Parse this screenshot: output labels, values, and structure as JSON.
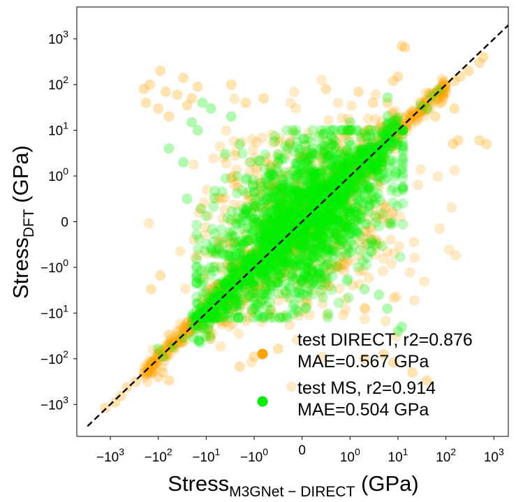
{
  "chart_data": {
    "type": "scatter",
    "title": "",
    "xlabel": {
      "main": "Stress",
      "sub": "M3GNet − DIRECT",
      "unit": "(GPa)"
    },
    "ylabel": {
      "main": "Stress",
      "sub": "DFT",
      "unit": "(GPa)"
    },
    "xscale": "symlog",
    "yscale": "symlog",
    "linthresh": 1,
    "xlim": [
      -5000,
      2000
    ],
    "ylim": [
      -5000,
      5000
    ],
    "x_ticks": [
      {
        "value": -1000,
        "base": "−10",
        "exp": "3"
      },
      {
        "value": -100,
        "base": "−10",
        "exp": "2"
      },
      {
        "value": -10,
        "base": "−10",
        "exp": "1"
      },
      {
        "value": -1,
        "base": "−10",
        "exp": "0"
      },
      {
        "value": 0,
        "base": "0",
        "exp": ""
      },
      {
        "value": 1,
        "base": "10",
        "exp": "0"
      },
      {
        "value": 10,
        "base": "10",
        "exp": "1"
      },
      {
        "value": 100,
        "base": "10",
        "exp": "2"
      },
      {
        "value": 1000,
        "base": "10",
        "exp": "3"
      }
    ],
    "y_ticks": [
      {
        "value": -1000,
        "base": "−10",
        "exp": "3"
      },
      {
        "value": -100,
        "base": "−10",
        "exp": "2"
      },
      {
        "value": -10,
        "base": "−10",
        "exp": "1"
      },
      {
        "value": -1,
        "base": "−10",
        "exp": "0"
      },
      {
        "value": 0,
        "base": "0",
        "exp": ""
      },
      {
        "value": 1,
        "base": "10",
        "exp": "0"
      },
      {
        "value": 10,
        "base": "10",
        "exp": "1"
      },
      {
        "value": 100,
        "base": "10",
        "exp": "2"
      },
      {
        "value": 1000,
        "base": "10",
        "exp": "3"
      }
    ],
    "reference_line": {
      "type": "y=x",
      "style": "dashed",
      "color": "#000000"
    },
    "series": [
      {
        "name": "test DIRECT",
        "legend_line1": "test DIRECT, r2=0.876",
        "legend_line2": "MAE=0.567 GPa",
        "r2": 0.876,
        "mae_gpa": 0.567,
        "color": "#FFA500",
        "alpha": 0.25,
        "note": "dense cloud concentrated along y=x; representative outliers listed",
        "points": [
          [
            -1300,
            -1200
          ],
          [
            -800,
            -900
          ],
          [
            -600,
            -650
          ],
          [
            -450,
            -420
          ],
          [
            -300,
            -320
          ],
          [
            -200,
            -210
          ],
          [
            -150,
            -140
          ],
          [
            -120,
            -110
          ],
          [
            -80,
            -90
          ],
          [
            -60,
            -55
          ],
          [
            -40,
            -45
          ],
          [
            -150,
            100
          ],
          [
            -180,
            40
          ],
          [
            -100,
            30
          ],
          [
            -90,
            200
          ],
          [
            -60,
            20
          ],
          [
            -70,
            70
          ],
          [
            -200,
            80
          ],
          [
            -140,
            -3
          ],
          [
            -90,
            -1.5
          ],
          [
            -60,
            -30
          ],
          [
            -40,
            -25
          ],
          [
            -80,
            -200
          ],
          [
            -60,
            -300
          ],
          [
            -100,
            -250
          ],
          [
            -30,
            140
          ],
          [
            -20,
            50
          ],
          [
            -15,
            90
          ],
          [
            -25,
            35
          ],
          [
            -40,
            60
          ],
          [
            -3,
            100
          ],
          [
            -1.5,
            40
          ],
          [
            -0.8,
            50
          ],
          [
            0.5,
            80
          ],
          [
            1.5,
            70
          ],
          [
            3,
            40
          ],
          [
            -2,
            -150
          ],
          [
            -1,
            -90
          ],
          [
            -0.5,
            -60
          ],
          [
            2,
            -100
          ],
          [
            5,
            -80
          ],
          [
            8,
            -120
          ],
          [
            12,
            700
          ],
          [
            14,
            650
          ],
          [
            10,
            150
          ],
          [
            8,
            120
          ],
          [
            6,
            40
          ],
          [
            150,
            30
          ],
          [
            140,
            5
          ],
          [
            180,
            6
          ],
          [
            80,
            40
          ],
          [
            60,
            20
          ],
          [
            600,
            400
          ],
          [
            500,
            300
          ],
          [
            300,
            200
          ],
          [
            200,
            150
          ],
          [
            150,
            120
          ],
          [
            100,
            70
          ],
          [
            700,
            5
          ],
          [
            500,
            6
          ],
          [
            20,
            -200
          ],
          [
            40,
            -300
          ],
          [
            -12,
            -5
          ],
          [
            -8,
            -3
          ],
          [
            -5,
            -15
          ],
          [
            -3,
            -8
          ],
          [
            4,
            6
          ],
          [
            7,
            12
          ],
          [
            9,
            18
          ]
        ]
      },
      {
        "name": "test MS",
        "legend_line1": "test MS, r2=0.914",
        "legend_line2": "MAE=0.504 GPa",
        "r2": 0.914,
        "mae_gpa": 0.504,
        "color": "#00EE00",
        "alpha": 0.25,
        "note": "very dense cloud spanning roughly -100..100 GPa on both axes; representative outliers listed",
        "points": [
          [
            -80,
            -90
          ],
          [
            -50,
            -55
          ],
          [
            -30,
            -35
          ],
          [
            -20,
            -18
          ],
          [
            -10,
            -12
          ],
          [
            30,
            35
          ],
          [
            50,
            55
          ],
          [
            70,
            75
          ],
          [
            40,
            30
          ],
          [
            -60,
            4
          ],
          [
            -20,
            15
          ],
          [
            -15,
            10
          ],
          [
            -30,
            2
          ],
          [
            12,
            -20
          ],
          [
            10,
            -25
          ],
          [
            6,
            -8
          ],
          [
            4,
            -4
          ],
          [
            -25,
            0.5
          ],
          [
            -7,
            -1
          ],
          [
            -4,
            3
          ],
          [
            -2,
            5
          ],
          [
            2,
            -3
          ],
          [
            -100,
            -60
          ],
          [
            -3,
            20
          ],
          [
            1,
            15
          ],
          [
            -8,
            30
          ],
          [
            -12,
            40
          ]
        ]
      }
    ],
    "legend": {
      "position": "lower-right"
    }
  }
}
